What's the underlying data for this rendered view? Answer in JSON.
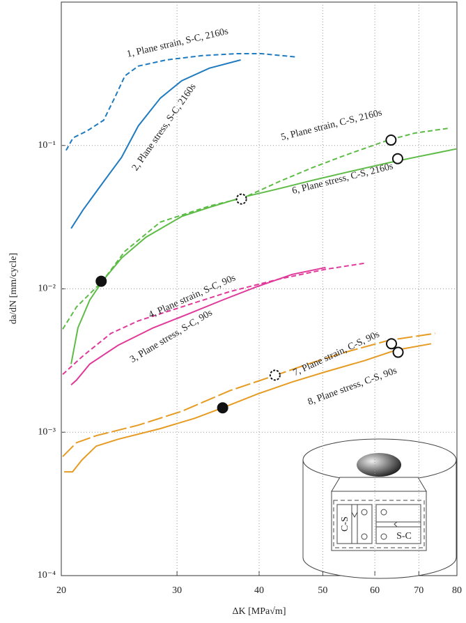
{
  "chart_data": {
    "type": "line",
    "x_label": "ΔK [MPa√m]",
    "y_label": "da/dN [mm/cycle]",
    "xscale": "log",
    "yscale": "log",
    "grid": true,
    "xlim": [
      20,
      80
    ],
    "ylim": [
      0.0001,
      1
    ],
    "xticks": [
      20,
      30,
      40,
      50,
      60,
      70,
      80
    ],
    "yticks": [
      {
        "value": 0.0001,
        "label": "10⁻⁴"
      },
      {
        "value": 0.001,
        "label": "10⁻³"
      },
      {
        "value": 0.01,
        "label": "10⁻²"
      },
      {
        "value": 0.1,
        "label": "10⁻¹"
      }
    ],
    "series": [
      {
        "name": "1, Plane strain, S-C, 2160s",
        "color": "#1f7bbf",
        "style": "dashed",
        "x": [
          20.34,
          20.84,
          21.87,
          23.2,
          24.1,
          25.0,
          26.2,
          28.9,
          32.7,
          37.0,
          40.3,
          45.6
        ],
        "values": [
          0.0925,
          0.113,
          0.126,
          0.15,
          0.214,
          0.306,
          0.358,
          0.395,
          0.423,
          0.437,
          0.437,
          0.414
        ]
      },
      {
        "name": "2, Plane stress, S-C, 2160s",
        "color": "#1f7bbf",
        "style": "solid",
        "x": [
          20.7,
          21.6,
          23.2,
          24.7,
          26.2,
          28.3,
          30.5,
          33.6,
          37.5
        ],
        "values": [
          0.0264,
          0.0357,
          0.056,
          0.0826,
          0.137,
          0.214,
          0.283,
          0.346,
          0.395
        ]
      },
      {
        "name": "3, Plane stress, S-C, 90s",
        "color": "#e0399a",
        "style": "solid",
        "x": [
          20.7,
          21.1,
          22.1,
          24.4,
          27.6,
          31.2,
          35.2,
          39.8,
          44.9,
          50.5
        ],
        "values": [
          0.00214,
          0.00231,
          0.00299,
          0.00404,
          0.00535,
          0.00668,
          0.00836,
          0.0104,
          0.0126,
          0.0141
        ]
      },
      {
        "name": "4, Plane strain, S-C, 90s",
        "color": "#e0399a",
        "style": "dashed",
        "x": [
          20.1,
          21.6,
          23.8,
          26.2,
          30.5,
          36.1,
          42.9,
          50.5,
          57.9
        ],
        "values": [
          0.00253,
          0.00342,
          0.00489,
          0.00598,
          0.00748,
          0.00957,
          0.0117,
          0.0137,
          0.0151
        ]
      },
      {
        "name": "5, Plane strain, C-S, 2160s",
        "color": "#5dbb46",
        "style": "dashed",
        "x": [
          20.1,
          21.1,
          23.1,
          25.0,
          28.3,
          33.6,
          37.9,
          42.9,
          48.2,
          54.1,
          62.9,
          69.0,
          77.9
        ],
        "values": [
          0.00523,
          0.00748,
          0.0113,
          0.0183,
          0.0292,
          0.0378,
          0.0432,
          0.056,
          0.07,
          0.0855,
          0.109,
          0.122,
          0.132
        ]
      },
      {
        "name": "6, Plane stress, C-S, 2160s",
        "color": "#5dbb46",
        "style": "solid",
        "x": [
          20.7,
          21.2,
          22.1,
          23.1,
          24.7,
          26.9,
          30.5,
          33.6,
          37.9,
          42.9,
          48.2,
          54.1,
          62.9,
          69.0,
          79.8
        ],
        "values": [
          0.00299,
          0.00535,
          0.00836,
          0.0113,
          0.0164,
          0.0229,
          0.032,
          0.037,
          0.0437,
          0.05,
          0.0571,
          0.0647,
          0.0757,
          0.0826,
          0.0946
        ]
      },
      {
        "name": "7, Plane strain, C-S, 90s",
        "color": "#e69b22",
        "style": "long-dashed",
        "x": [
          20.1,
          21.1,
          22.6,
          26.2,
          30.5,
          36.1,
          42.4,
          48.2,
          54.1,
          62.9,
          74.1
        ],
        "values": [
          0.000676,
          0.000846,
          0.000946,
          0.00112,
          0.0014,
          0.00195,
          0.0025,
          0.00306,
          0.00361,
          0.00437,
          0.00489
        ]
      },
      {
        "name": "8, Plane stress, C-S, 90s",
        "color": "#e69b22",
        "style": "solid",
        "x": [
          20.2,
          20.8,
          21.5,
          22.6,
          24.4,
          28.3,
          31.9,
          35.2,
          39.8,
          44.9,
          50.5,
          57.9,
          64.6,
          73.1
        ],
        "values": [
          0.000529,
          0.000529,
          0.00064,
          0.0008,
          0.000894,
          0.00106,
          0.00125,
          0.00148,
          0.00185,
          0.00224,
          0.00264,
          0.00316,
          0.00374,
          0.00414
        ]
      }
    ],
    "markers": [
      {
        "x": 23.0,
        "y": 0.0113,
        "style": "filled"
      },
      {
        "x": 37.6,
        "y": 0.0423,
        "style": "dashed"
      },
      {
        "x": 63.5,
        "y": 0.109,
        "style": "open"
      },
      {
        "x": 65.0,
        "y": 0.0809,
        "style": "open"
      },
      {
        "x": 42.3,
        "y": 0.0025,
        "style": "dashed"
      },
      {
        "x": 63.6,
        "y": 0.00414,
        "style": "open"
      },
      {
        "x": 65.1,
        "y": 0.00361,
        "style": "open"
      },
      {
        "x": 35.2,
        "y": 0.00148,
        "style": "filled"
      }
    ],
    "inset_labels": [
      "C-S",
      "S-C"
    ]
  }
}
